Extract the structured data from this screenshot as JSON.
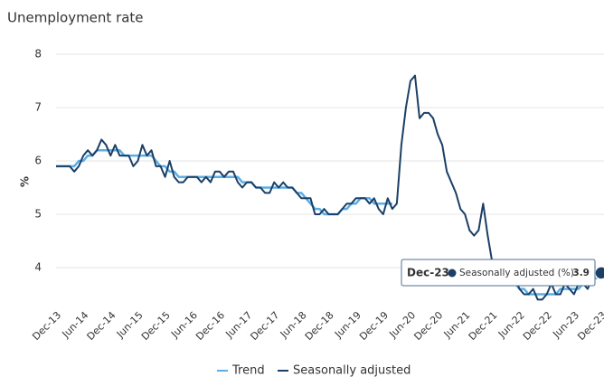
{
  "chart_data": {
    "type": "line",
    "title": "Unemployment rate",
    "y_label": "%",
    "categories": [
      "Dec-13",
      null,
      null,
      null,
      null,
      null,
      "Jun-14",
      null,
      null,
      null,
      null,
      null,
      "Dec-14",
      null,
      null,
      null,
      null,
      null,
      "Jun-15",
      null,
      null,
      null,
      null,
      null,
      "Dec-15",
      null,
      null,
      null,
      null,
      null,
      "Jun-16",
      null,
      null,
      null,
      null,
      null,
      "Dec-16",
      null,
      null,
      null,
      null,
      null,
      "Jun-17",
      null,
      null,
      null,
      null,
      null,
      "Dec-17",
      null,
      null,
      null,
      null,
      null,
      "Jun-18",
      null,
      null,
      null,
      null,
      null,
      "Dec-18",
      null,
      null,
      null,
      null,
      null,
      "Jun-19",
      null,
      null,
      null,
      null,
      null,
      "Dec-19",
      null,
      null,
      null,
      null,
      null,
      "Jun-20",
      null,
      null,
      null,
      null,
      null,
      "Dec-20",
      null,
      null,
      null,
      null,
      null,
      "Jun-21",
      null,
      null,
      null,
      null,
      null,
      "Dec-21",
      null,
      null,
      null,
      null,
      null,
      "Jun-22",
      null,
      null,
      null,
      null,
      null,
      "Dec-22",
      null,
      null,
      null,
      null,
      null,
      "Jun-23",
      null,
      null,
      null,
      null,
      null,
      "Dec-23"
    ],
    "series": [
      {
        "name": "Trend",
        "color": "#5aaee6",
        "values": [
          5.9,
          5.9,
          5.9,
          5.9,
          5.9,
          6.0,
          6.0,
          6.1,
          6.1,
          6.2,
          6.2,
          6.2,
          6.2,
          6.2,
          6.2,
          6.1,
          6.1,
          6.1,
          6.1,
          6.1,
          6.1,
          6.1,
          6.0,
          5.9,
          5.9,
          5.8,
          5.8,
          5.7,
          5.7,
          5.7,
          5.7,
          5.7,
          5.7,
          5.7,
          5.7,
          5.7,
          5.7,
          5.7,
          5.7,
          5.7,
          5.7,
          5.6,
          5.6,
          5.6,
          5.5,
          5.5,
          5.5,
          5.5,
          5.5,
          5.5,
          5.5,
          5.5,
          5.5,
          5.4,
          5.4,
          5.3,
          5.2,
          5.1,
          5.1,
          5.0,
          5.0,
          5.0,
          5.0,
          5.1,
          5.1,
          5.2,
          5.2,
          5.3,
          5.3,
          5.3,
          5.2,
          5.2,
          5.2,
          5.2,
          5.2,
          null,
          null,
          null,
          null,
          null,
          null,
          null,
          null,
          null,
          null,
          null,
          null,
          null,
          null,
          null,
          null,
          null,
          null,
          null,
          null,
          null,
          null,
          4.0,
          3.9,
          3.9,
          3.8,
          3.7,
          3.6,
          3.6,
          3.5,
          3.5,
          3.5,
          3.5,
          3.5,
          3.5,
          3.5,
          3.6,
          3.6,
          3.6,
          3.6,
          3.6,
          3.7,
          3.7,
          3.8,
          3.8,
          3.9
        ]
      },
      {
        "name": "Seasonally adjusted",
        "color": "#1b3f66",
        "values": [
          5.9,
          5.9,
          5.9,
          5.9,
          5.8,
          5.9,
          6.1,
          6.2,
          6.1,
          6.2,
          6.4,
          6.3,
          6.1,
          6.3,
          6.1,
          6.1,
          6.1,
          5.9,
          6.0,
          6.3,
          6.1,
          6.2,
          5.9,
          5.9,
          5.7,
          6.0,
          5.7,
          5.6,
          5.6,
          5.7,
          5.7,
          5.7,
          5.6,
          5.7,
          5.6,
          5.8,
          5.8,
          5.7,
          5.8,
          5.8,
          5.6,
          5.5,
          5.6,
          5.6,
          5.5,
          5.5,
          5.4,
          5.4,
          5.6,
          5.5,
          5.6,
          5.5,
          5.5,
          5.4,
          5.3,
          5.3,
          5.3,
          5.0,
          5.0,
          5.1,
          5.0,
          5.0,
          5.0,
          5.1,
          5.2,
          5.2,
          5.3,
          5.3,
          5.3,
          5.2,
          5.3,
          5.1,
          5.0,
          5.3,
          5.1,
          5.2,
          6.3,
          7.0,
          7.5,
          7.6,
          6.8,
          6.9,
          6.9,
          6.8,
          6.5,
          6.3,
          5.8,
          5.6,
          5.4,
          5.1,
          5.0,
          4.7,
          4.6,
          4.7,
          5.2,
          4.6,
          4.1,
          4.0,
          4.0,
          3.9,
          3.9,
          3.8,
          3.6,
          3.5,
          3.5,
          3.6,
          3.4,
          3.4,
          3.5,
          3.7,
          3.5,
          3.5,
          3.7,
          3.6,
          3.5,
          3.7,
          3.7,
          3.6,
          3.8,
          3.9,
          3.9
        ]
      }
    ],
    "tooltip": {
      "label": "Seasonally adjusted (%):"
    },
    "ylim": [
      3.3,
      8
    ],
    "yticks": [
      4,
      5,
      6,
      7,
      8
    ],
    "grid": true
  }
}
